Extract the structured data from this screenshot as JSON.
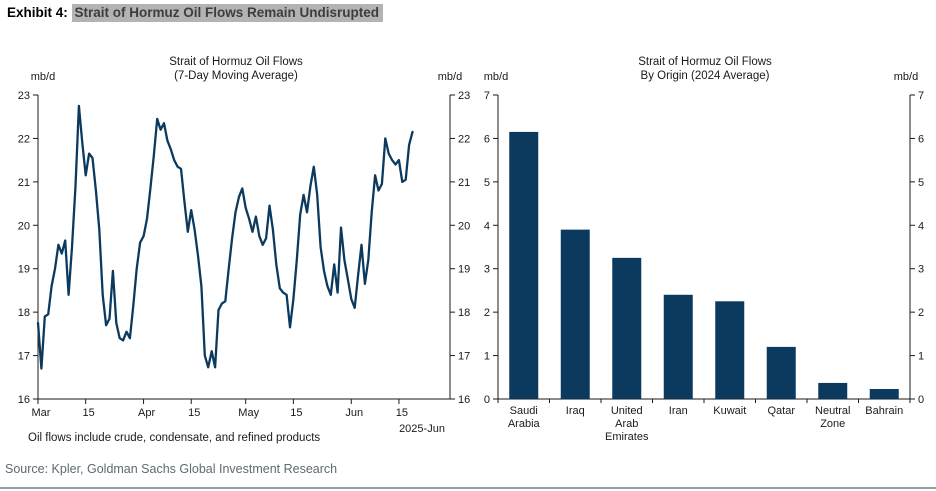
{
  "header": {
    "exhibit_label": "Exhibit 4:",
    "title": "Strait of Hormuz Oil Flows Remain Undisrupted",
    "highlight_color": "#b3b3b3"
  },
  "source": "Source: Kpler, Goldman Sachs Global Investment Research",
  "colors": {
    "series": "#0c3a5f",
    "axis": "#1a1a1a",
    "source_text": "#5d6a72",
    "bottom_rule": "#97a1a8"
  },
  "chart_data": [
    {
      "type": "line",
      "title_line1": "Strait of Hormuz Oil Flows",
      "title_line2": "(7-Day Moving Average)",
      "unit_label_left": "mb/d",
      "unit_label_right": "mb/d",
      "ylim": [
        16,
        23
      ],
      "yticks": [
        16,
        17,
        18,
        19,
        20,
        21,
        22,
        23
      ],
      "x_total_days": 121,
      "xticks": [
        {
          "day": 0,
          "label": "Mar"
        },
        {
          "day": 14,
          "label": "15"
        },
        {
          "day": 31,
          "label": "Apr"
        },
        {
          "day": 45,
          "label": "15"
        },
        {
          "day": 61,
          "label": "May"
        },
        {
          "day": 75,
          "label": "15"
        },
        {
          "day": 92,
          "label": "Jun"
        },
        {
          "day": 106,
          "label": "15"
        }
      ],
      "x_end_label": "2025-Jun",
      "footnote": "Oil flows include crude, condensate, and refined products",
      "values": [
        17.75,
        16.7,
        17.9,
        17.95,
        18.6,
        19.0,
        19.55,
        19.35,
        19.65,
        18.4,
        19.5,
        20.9,
        22.75,
        21.9,
        21.15,
        21.65,
        21.55,
        20.8,
        19.9,
        18.4,
        17.7,
        17.85,
        18.95,
        17.75,
        17.4,
        17.35,
        17.55,
        17.4,
        18.15,
        19.0,
        19.6,
        19.75,
        20.15,
        20.85,
        21.6,
        22.45,
        22.2,
        22.35,
        21.95,
        21.75,
        21.5,
        21.35,
        21.3,
        20.55,
        19.85,
        20.35,
        19.9,
        19.3,
        18.6,
        17.0,
        16.73,
        17.1,
        16.73,
        18.05,
        18.2,
        18.25,
        19.0,
        19.7,
        20.3,
        20.65,
        20.85,
        20.4,
        20.15,
        19.85,
        20.2,
        19.75,
        19.55,
        19.7,
        20.45,
        19.9,
        19.1,
        18.55,
        18.45,
        18.4,
        17.65,
        18.3,
        19.2,
        20.25,
        20.7,
        20.3,
        20.9,
        21.35,
        20.7,
        19.5,
        18.95,
        18.6,
        18.4,
        19.1,
        18.45,
        19.95,
        19.2,
        18.75,
        18.3,
        18.1,
        18.85,
        19.55,
        18.65,
        19.2,
        20.3,
        21.15,
        20.8,
        20.95,
        22.0,
        21.65,
        21.5,
        21.4,
        21.5,
        21.0,
        21.05,
        21.85,
        22.15
      ]
    },
    {
      "type": "bar",
      "title_line1": "Strait of Hormuz Oil Flows",
      "title_line2": "By Origin (2024 Average)",
      "unit_label_left": "mb/d",
      "unit_label_right": "mb/d",
      "ylim": [
        0,
        7
      ],
      "yticks": [
        0,
        1,
        2,
        3,
        4,
        5,
        6,
        7
      ],
      "categories": [
        [
          "Saudi",
          "Arabia"
        ],
        [
          "Iraq"
        ],
        [
          "United",
          "Arab",
          "Emirates"
        ],
        [
          "Iran"
        ],
        [
          "Kuwait"
        ],
        [
          "Qatar"
        ],
        [
          "Neutral",
          "Zone"
        ],
        [
          "Bahrain"
        ]
      ],
      "category_names": [
        "Saudi Arabia",
        "Iraq",
        "United Arab Emirates",
        "Iran",
        "Kuwait",
        "Qatar",
        "Neutral Zone",
        "Bahrain"
      ],
      "values": [
        6.15,
        3.9,
        3.25,
        2.4,
        2.25,
        1.2,
        0.37,
        0.23
      ]
    }
  ]
}
